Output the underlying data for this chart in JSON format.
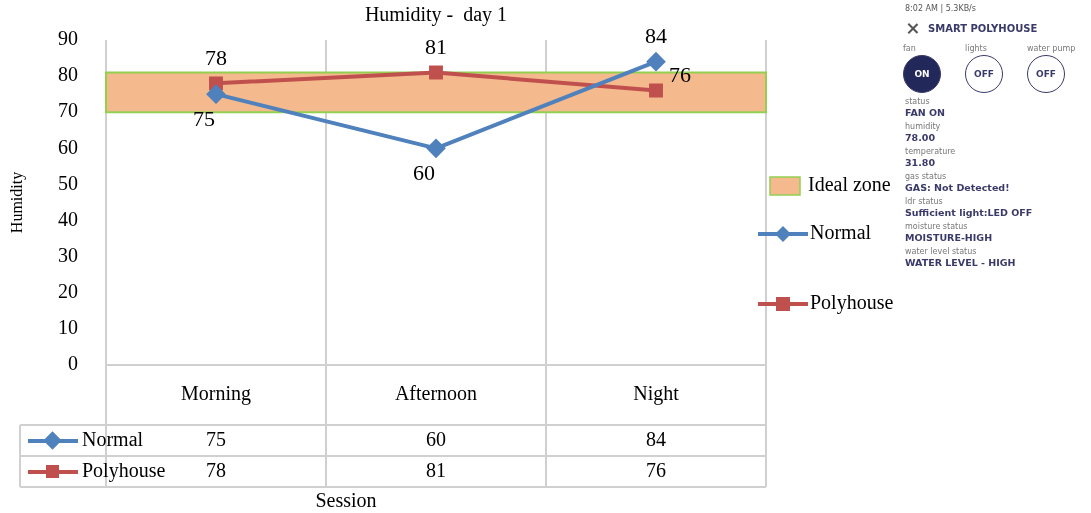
{
  "chart_data": [
    {
      "type": "line",
      "title": "Humidity -  day 1",
      "xlabel": "Session",
      "ylabel": "Humidity",
      "categories": [
        "Morning",
        "Afternoon",
        "Night"
      ],
      "series": [
        {
          "name": "Normal",
          "color": "#4f81bd",
          "marker": "diamond",
          "values": [
            75,
            60,
            84
          ],
          "value_labels": [
            "75",
            "60",
            "84"
          ]
        },
        {
          "name": "Polyhouse",
          "color": "#c0504d",
          "marker": "square",
          "values": [
            78,
            81,
            76
          ],
          "value_labels": [
            "78",
            "81",
            "76"
          ]
        }
      ],
      "bands": [
        {
          "axis": "y",
          "from": 70,
          "to": 81,
          "label": "Ideal zone",
          "color": "#f4b98c"
        }
      ],
      "ylim": [
        0,
        90
      ],
      "yticks": [
        0,
        10,
        20,
        30,
        40,
        50,
        60,
        70,
        80,
        90
      ],
      "grid": "x",
      "legend": "right",
      "data_labels": true
    },
    {
      "type": "other",
      "title": "SMART POLYHOUSE",
      "annotations": [
        "8:02 AM | 5.3KB/s",
        "fan",
        "lights",
        "water pump",
        "ON",
        "OFF",
        "OFF",
        "status",
        "FAN ON",
        "humidity",
        "78.00",
        "temperature",
        "31.80",
        "gas status",
        "GAS: Not Detected!",
        "ldr status",
        "Sufficient light:LED OFF",
        "moisture status",
        "MOISTURE-HIGH",
        "water level status",
        "WATER LEVEL - HIGH"
      ]
    }
  ]
}
